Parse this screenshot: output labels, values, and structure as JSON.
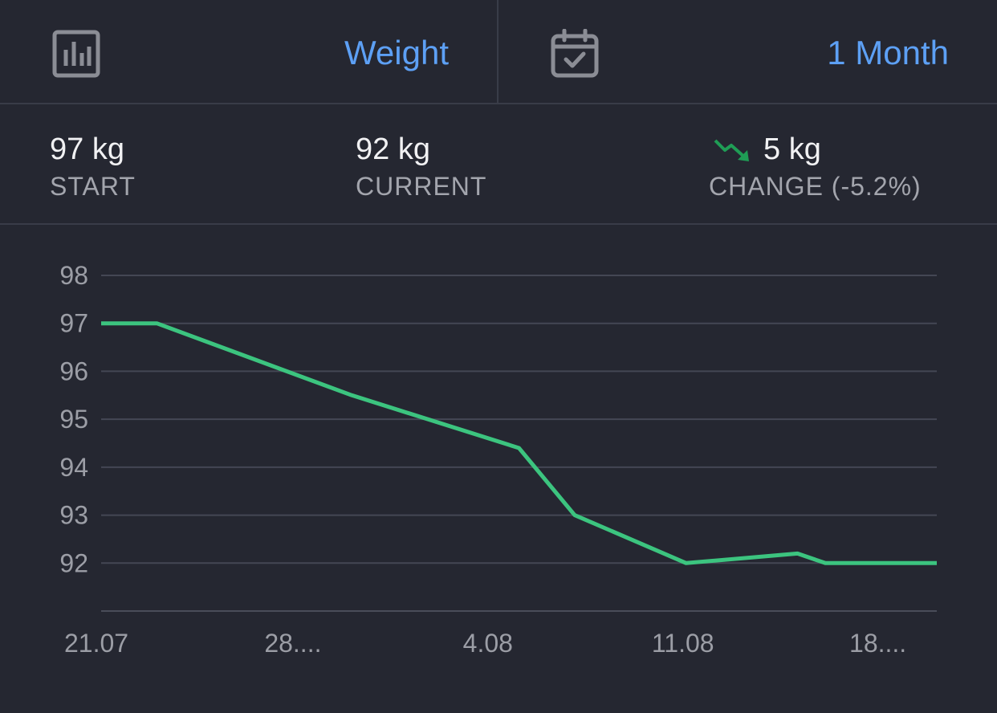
{
  "header": {
    "metric_icon": "bar-chart-icon",
    "metric_label": "Weight",
    "period_icon": "calendar-check-icon",
    "period_label": "1 Month",
    "accent_color": "#5da0f5"
  },
  "stats": {
    "start": {
      "value": "97 kg",
      "label": "START"
    },
    "current": {
      "value": "92 kg",
      "label": "CURRENT"
    },
    "change": {
      "icon": "trend-down-icon",
      "value": "5 kg",
      "label": "CHANGE (-5.2%)",
      "icon_color": "#1f9d55"
    }
  },
  "chart_data": {
    "type": "line",
    "title": "",
    "xlabel": "",
    "ylabel": "",
    "y_ticks": [
      "98",
      "97",
      "96",
      "95",
      "94",
      "93",
      "92"
    ],
    "x_tick_labels": [
      "21.07",
      "28....",
      "4.08",
      "11.08",
      "18...."
    ],
    "x_tick_days": [
      0,
      7,
      14,
      21,
      28
    ],
    "x_range_days": [
      0,
      30
    ],
    "ylim": [
      91,
      98
    ],
    "line_color": "#3cc47f",
    "grid": true,
    "series": [
      {
        "name": "Weight",
        "x_days": [
          0,
          2,
          9,
          15,
          17,
          21,
          25,
          26,
          30
        ],
        "values": [
          97,
          97,
          95.5,
          94.4,
          93,
          92,
          92.2,
          92,
          92
        ]
      }
    ]
  }
}
